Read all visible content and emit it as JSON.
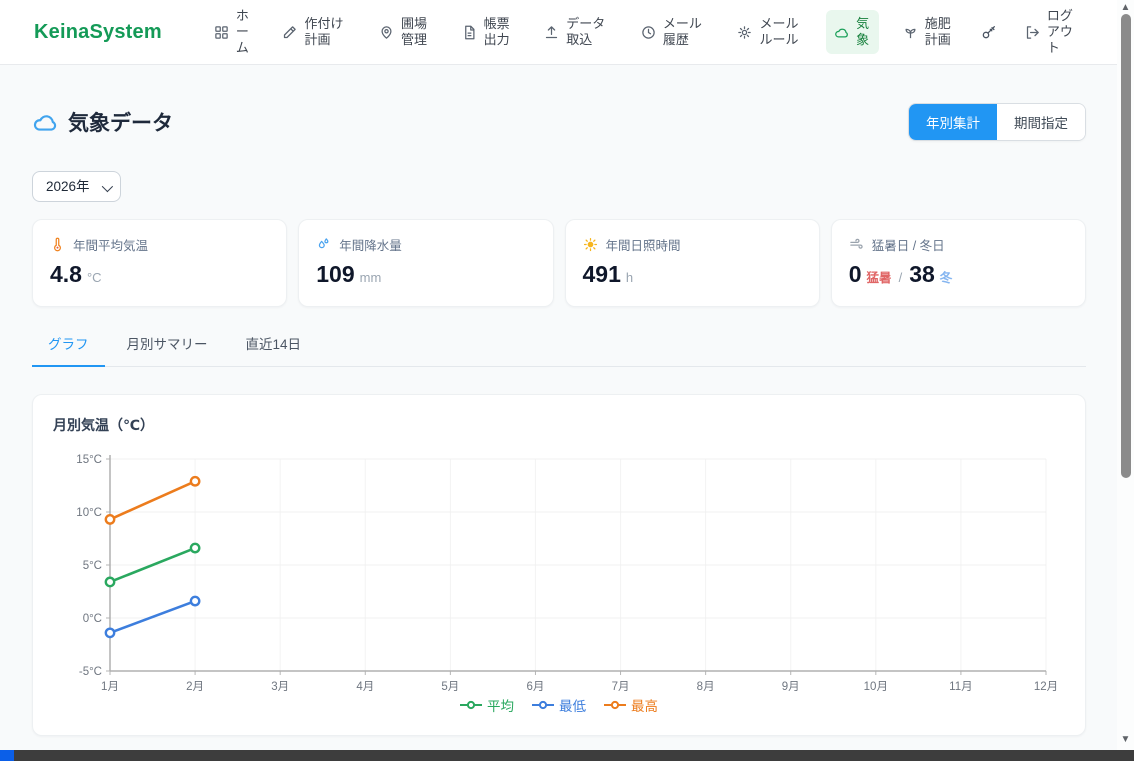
{
  "nav": {
    "logo": "KeinaSystem",
    "items": [
      {
        "label": "ホーム",
        "icon": "grid-icon"
      },
      {
        "label": "作付け計画",
        "icon": "crop-plan-icon"
      },
      {
        "label": "圃場管理",
        "icon": "map-pin-icon"
      },
      {
        "label": "帳票出力",
        "icon": "report-icon"
      },
      {
        "label": "データ取込",
        "icon": "upload-icon"
      },
      {
        "label": "メール履歴",
        "icon": "history-icon"
      },
      {
        "label": "メールルール",
        "icon": "gear-icon"
      },
      {
        "label": "気象",
        "icon": "cloud-icon",
        "active": true
      },
      {
        "label": "施肥計画",
        "icon": "seedling-icon"
      },
      {
        "label": "ログアウト",
        "icon": "logout-icon"
      }
    ]
  },
  "header": {
    "title": "気象データ",
    "toggle": {
      "yearly": "年別集計",
      "period": "期間指定"
    }
  },
  "filters": {
    "year": "2026年"
  },
  "stats": [
    {
      "icon": "thermometer-icon",
      "label": "年間平均気温",
      "value": "4.8",
      "unit": "°C"
    },
    {
      "icon": "droplets-icon",
      "label": "年間降水量",
      "value": "109",
      "unit": "mm"
    },
    {
      "icon": "sun-icon",
      "label": "年間日照時間",
      "value": "491",
      "unit": "h"
    },
    {
      "icon": "wind-icon",
      "label": "猛暑日 / 冬日",
      "value": "0",
      "value_suffix": "猛暑",
      "separator": "/",
      "value2": "38",
      "value2_suffix": "冬"
    }
  ],
  "tabs": [
    {
      "label": "グラフ",
      "active": true
    },
    {
      "label": "月別サマリー",
      "active": false
    },
    {
      "label": "直近14日",
      "active": false
    }
  ],
  "chart_data": {
    "type": "line",
    "title": "月別気温（℃）",
    "categories": [
      "1月",
      "2月",
      "3月",
      "4月",
      "5月",
      "6月",
      "7月",
      "8月",
      "9月",
      "10月",
      "11月",
      "12月"
    ],
    "series": [
      {
        "name": "平均",
        "color": "#2aa85f",
        "values": [
          3.4,
          6.6,
          null,
          null,
          null,
          null,
          null,
          null,
          null,
          null,
          null,
          null
        ]
      },
      {
        "name": "最低",
        "color": "#3d7edd",
        "values": [
          -1.4,
          1.6,
          null,
          null,
          null,
          null,
          null,
          null,
          null,
          null,
          null,
          null
        ]
      },
      {
        "name": "最高",
        "color": "#ec7c1d",
        "values": [
          9.3,
          12.9,
          null,
          null,
          null,
          null,
          null,
          null,
          null,
          null,
          null,
          null
        ]
      }
    ],
    "ylim": [
      -5,
      15
    ],
    "ytick_step": 5,
    "ytick_suffix": "°C",
    "grid": true,
    "legend_position": "bottom"
  }
}
